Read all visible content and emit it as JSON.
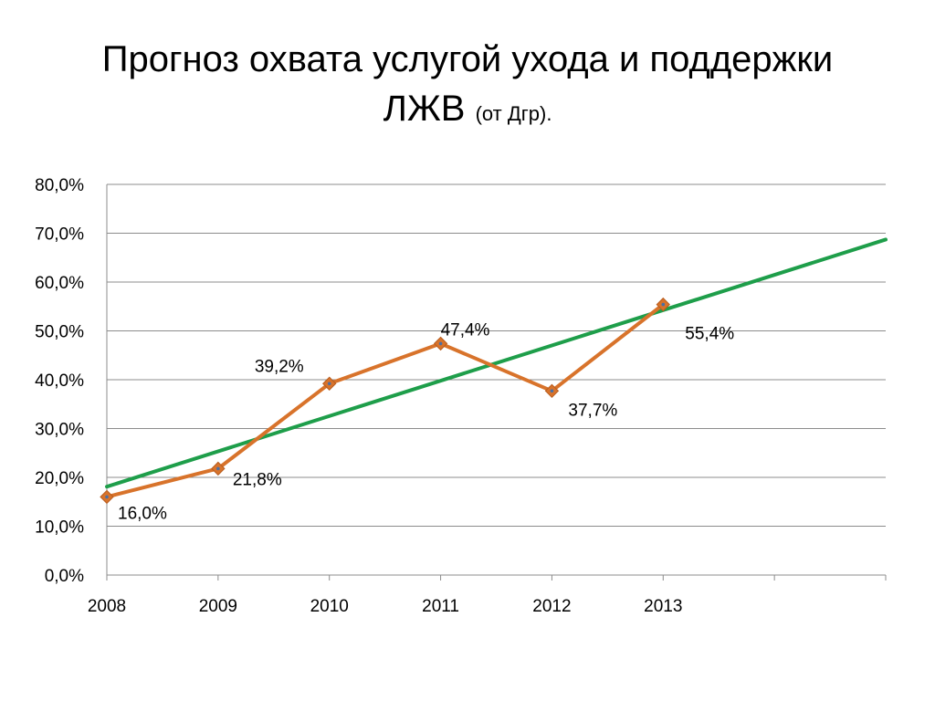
{
  "title": {
    "main_line1": "Прогноз охвата услугой ухода и поддержки",
    "main_line2": "ЛЖВ",
    "suffix": "(от Дгр)."
  },
  "chart_data": {
    "type": "line",
    "categories": [
      "2008",
      "2009",
      "2010",
      "2011",
      "2012",
      "2013"
    ],
    "series": [
      {
        "values": [
          16.0,
          21.8,
          39.2,
          47.4,
          37.7,
          55.4
        ],
        "data_labels": [
          "16,0%",
          "21,8%",
          "39,2%",
          "47,4%",
          "37,7%",
          "55,4%"
        ],
        "color": "#d8732b",
        "marker": "diamond"
      }
    ],
    "trendline": {
      "type": "linear",
      "start": [
        2008,
        18.1
      ],
      "end": [
        2015,
        68.7
      ],
      "color": "#1e9e4a"
    },
    "x_range": [
      2008,
      2015
    ],
    "yticks": [
      "0,0%",
      "10,0%",
      "20,0%",
      "30,0%",
      "40,0%",
      "50,0%",
      "60,0%",
      "70,0%",
      "80,0%"
    ],
    "ylim": [
      0,
      80
    ],
    "grid": true,
    "legend": false,
    "colors": {
      "grid": "#8c8c8c",
      "axis": "#8c8c8c"
    }
  }
}
